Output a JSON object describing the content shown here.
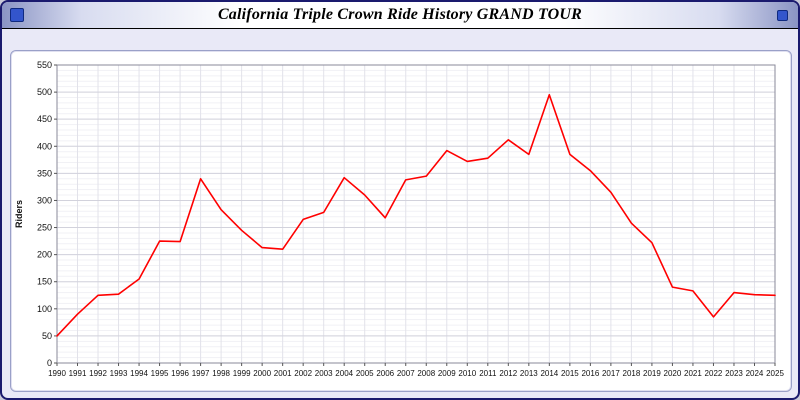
{
  "window": {
    "title": "California Triple Crown Ride History GRAND TOUR"
  },
  "chart_data": {
    "type": "line",
    "title": "California Triple Crown Ride History GRAND TOUR",
    "xlabel": "",
    "ylabel": "Riders",
    "ylim": [
      0,
      550
    ],
    "ytick_step": 50,
    "ytick_minor_step": 10,
    "grid": true,
    "legend": "none",
    "line_color": "#ff0000",
    "x": [
      1990,
      1991,
      1992,
      1993,
      1994,
      1995,
      1996,
      1997,
      1998,
      1999,
      2000,
      2001,
      2002,
      2003,
      2004,
      2005,
      2006,
      2007,
      2008,
      2009,
      2010,
      2011,
      2012,
      2013,
      2014,
      2015,
      2016,
      2017,
      2018,
      2019,
      2020,
      2021,
      2022,
      2023,
      2024,
      2025
    ],
    "series": [
      {
        "name": "Riders",
        "values": [
          50,
          90,
          125,
          127,
          155,
          225,
          224,
          340,
          283,
          245,
          213,
          210,
          265,
          278,
          342,
          310,
          268,
          338,
          345,
          392,
          372,
          378,
          412,
          385,
          495,
          385,
          355,
          315,
          258,
          222,
          140,
          133,
          85,
          130,
          126,
          125
        ]
      }
    ]
  }
}
